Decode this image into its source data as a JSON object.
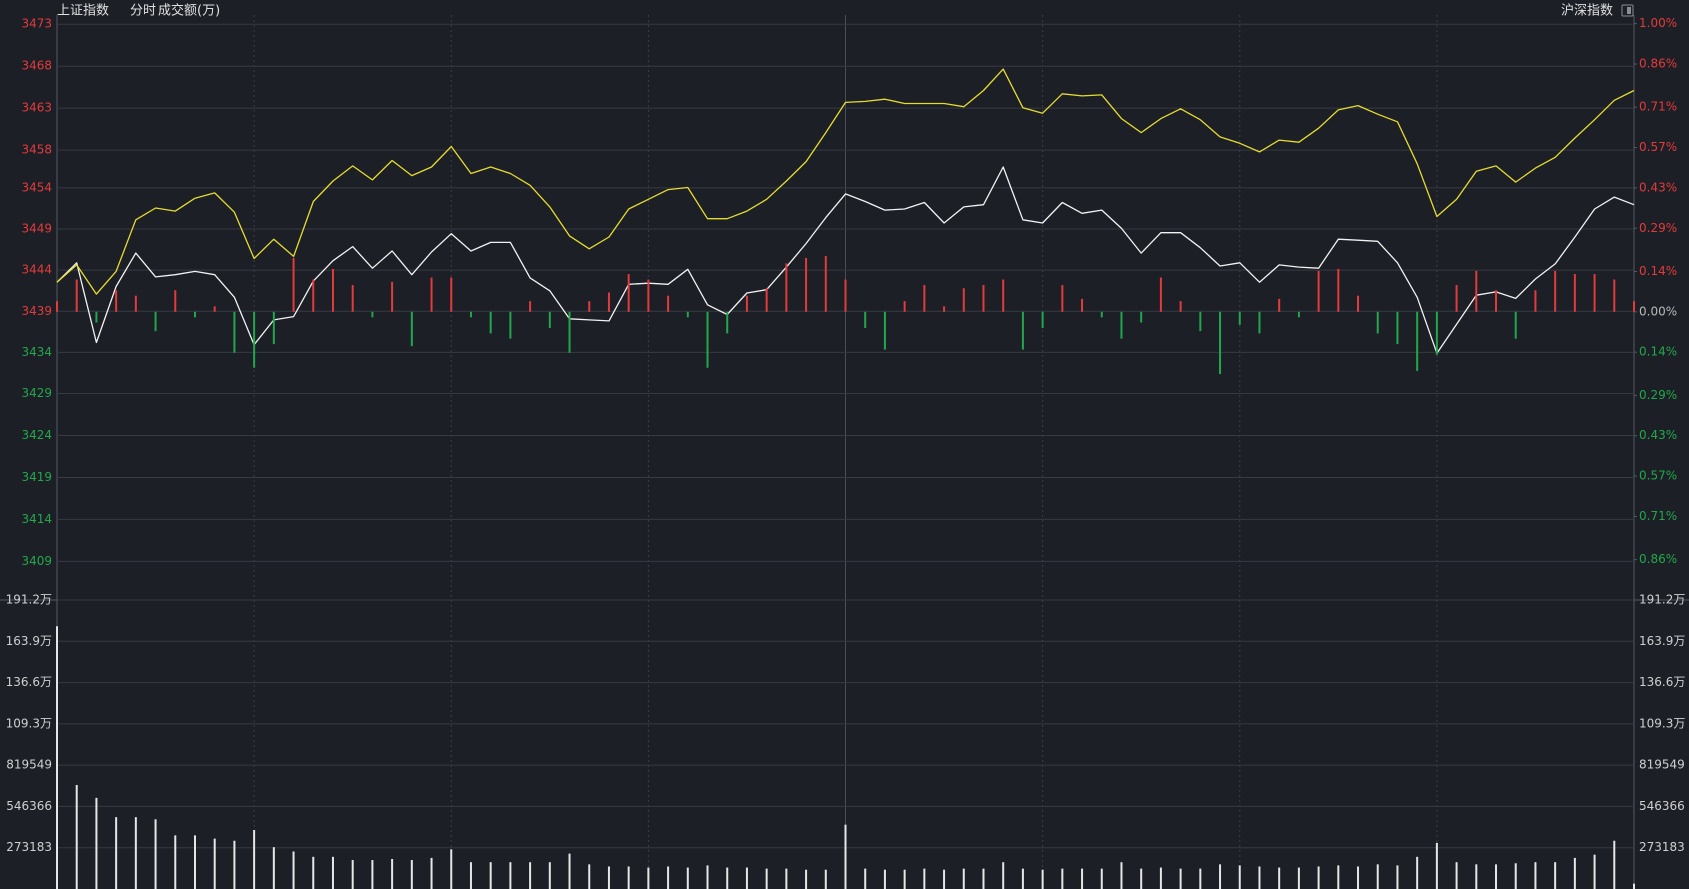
{
  "header": {
    "title": "上证指数",
    "period": "分时",
    "volume_label": "成交额(万)",
    "switch": "沪深指数"
  },
  "chart_data": [
    {
      "type": "line",
      "up_color": "#e23b3b",
      "down_color": "#22a84a",
      "flat_color": "#b8b8b8",
      "grid": true,
      "ylim": [
        3404.8,
        3474.5
      ],
      "yticks": [
        {
          "value": 3473.4,
          "label": "3473"
        },
        {
          "value": 3468.4,
          "label": "3468"
        },
        {
          "value": 3463.4,
          "label": "3463"
        },
        {
          "value": 3458.4,
          "label": "3458"
        },
        {
          "value": 3453.9,
          "label": "3454"
        },
        {
          "value": 3449.0,
          "label": "3449"
        },
        {
          "value": 3444.1,
          "label": "3444"
        },
        {
          "value": 3439.2,
          "label": "3439"
        },
        {
          "value": 3434.3,
          "label": "3434"
        },
        {
          "value": 3429.4,
          "label": "3429"
        },
        {
          "value": 3424.4,
          "label": "3424"
        },
        {
          "value": 3419.4,
          "label": "3419"
        },
        {
          "value": 3414.4,
          "label": "3414"
        },
        {
          "value": 3409.4,
          "label": "3409"
        }
      ],
      "y2lim": [
        -1.0,
        1.03
      ],
      "y2ticks": [
        {
          "value": 1.0,
          "label": "1.00%"
        },
        {
          "value": 0.86,
          "label": "0.86%"
        },
        {
          "value": 0.71,
          "label": "0.71%"
        },
        {
          "value": 0.57,
          "label": "0.57%"
        },
        {
          "value": 0.43,
          "label": "0.43%"
        },
        {
          "value": 0.29,
          "label": "0.29%"
        },
        {
          "value": 0.14,
          "label": "0.14%"
        },
        {
          "value": 0.0,
          "label": "0.00%"
        },
        {
          "value": -0.14,
          "label": "0.14%"
        },
        {
          "value": -0.29,
          "label": "0.29%"
        },
        {
          "value": -0.43,
          "label": "0.43%"
        },
        {
          "value": -0.57,
          "label": "0.57%"
        },
        {
          "value": -0.71,
          "label": "0.71%"
        },
        {
          "value": -0.86,
          "label": "0.86%"
        }
      ],
      "series": [
        {
          "color": "#f2f2f2",
          "values": [
            3442.66,
            3444.97,
            3435.48,
            3442.15,
            3446.13,
            3443.3,
            3443.56,
            3443.95,
            3443.56,
            3440.87,
            3435.22,
            3438.17,
            3438.56,
            3442.79,
            3445.23,
            3446.9,
            3444.33,
            3446.38,
            3443.56,
            3446.26,
            3448.44,
            3446.38,
            3447.41,
            3447.41,
            3443.18,
            3441.64,
            3438.3,
            3438.17,
            3438.05,
            3442.41,
            3442.54,
            3442.41,
            3444.2,
            3439.97,
            3438.82,
            3441.38,
            3441.77,
            3444.46,
            3447.28,
            3450.36,
            3453.18,
            3452.28,
            3451.26,
            3451.39,
            3452.16,
            3449.72,
            3451.64,
            3451.9,
            3456.39,
            3450.1,
            3449.72,
            3452.16,
            3450.87,
            3451.26,
            3449.08,
            3446.13,
            3448.56,
            3448.56,
            3446.77,
            3444.59,
            3444.97,
            3442.66,
            3444.72,
            3444.46,
            3444.33,
            3447.79,
            3447.67,
            3447.54,
            3444.97,
            3440.87,
            3434.2,
            3437.66,
            3441.12,
            3441.51,
            3440.74,
            3443.05,
            3444.84,
            3448.05,
            3451.39,
            3452.8,
            3451.9
          ]
        },
        {
          "color": "#e6dc2e",
          "values": [
            3442.66,
            3444.72,
            3441.25,
            3443.95,
            3450.1,
            3451.51,
            3451.13,
            3452.67,
            3453.31,
            3451.0,
            3445.49,
            3447.79,
            3445.74,
            3452.28,
            3454.72,
            3456.52,
            3454.85,
            3457.16,
            3455.36,
            3456.39,
            3458.83,
            3455.62,
            3456.39,
            3455.62,
            3454.21,
            3451.64,
            3448.18,
            3446.64,
            3448.05,
            3451.39,
            3452.54,
            3453.7,
            3453.95,
            3450.23,
            3450.23,
            3451.13,
            3452.54,
            3454.72,
            3457.03,
            3460.49,
            3464.09,
            3464.21,
            3464.47,
            3463.96,
            3463.96,
            3463.96,
            3463.57,
            3465.5,
            3468.06,
            3463.44,
            3462.8,
            3465.11,
            3464.86,
            3464.98,
            3462.16,
            3460.49,
            3462.16,
            3463.32,
            3462.03,
            3459.98,
            3459.21,
            3458.19,
            3459.6,
            3459.34,
            3461.01,
            3463.19,
            3463.7,
            3462.68,
            3461.78,
            3456.77,
            3450.49,
            3452.54,
            3455.88,
            3456.52,
            3454.59,
            3456.26,
            3457.54,
            3459.85,
            3462.03,
            3464.34,
            3465.5
          ]
        },
        {
          "type": "bar",
          "axis": "y2",
          "values": [
            0.037,
            0.112,
            -0.037,
            0.075,
            0.056,
            -0.067,
            0.075,
            -0.019,
            0.019,
            -0.142,
            -0.194,
            -0.112,
            0.187,
            0.112,
            0.149,
            0.093,
            -0.019,
            0.104,
            -0.119,
            0.119,
            0.119,
            -0.019,
            -0.075,
            -0.093,
            0.037,
            -0.056,
            -0.142,
            0.037,
            0.067,
            0.131,
            0.112,
            0.056,
            -0.019,
            -0.194,
            -0.075,
            0.056,
            0.082,
            0.168,
            0.187,
            0.194,
            0.112,
            -0.056,
            -0.131,
            0.037,
            0.093,
            0.019,
            0.082,
            0.093,
            0.112,
            -0.131,
            -0.056,
            0.093,
            0.045,
            -0.019,
            -0.093,
            -0.037,
            0.119,
            0.037,
            -0.067,
            -0.216,
            -0.045,
            -0.075,
            0.045,
            -0.019,
            0.142,
            0.149,
            0.056,
            -0.075,
            -0.112,
            -0.205,
            -0.149,
            0.093,
            0.142,
            0.075,
            -0.093,
            0.075,
            0.142,
            0.131,
            0.131,
            0.112,
            0.037
          ]
        }
      ]
    },
    {
      "type": "bar",
      "color": "#e6e6e6",
      "grid": true,
      "ylim": [
        0,
        1912281
      ],
      "yticks": [
        273183,
        546366,
        819549,
        {
          "value": 1092732,
          "label": "109.3万"
        },
        {
          "value": 1365915,
          "label": "136.6万"
        },
        {
          "value": 1639098,
          "label": "163.9万"
        },
        {
          "value": 1912281,
          "label": "191.2万"
        }
      ],
      "values": [
        1738520,
        688312,
        603160,
        475432,
        475432,
        461240,
        354800,
        354800,
        333512,
        319320,
        390280,
        276744,
        248360,
        212880,
        212880,
        191592,
        191592,
        198688,
        191592,
        205784,
        262552,
        177400,
        177400,
        177400,
        177400,
        177400,
        234168,
        163208,
        149016,
        149016,
        141920,
        149016,
        141920,
        156112,
        141920,
        141920,
        134824,
        134824,
        127728,
        127728,
        425760,
        134824,
        127728,
        127728,
        134824,
        127728,
        134824,
        134824,
        177400,
        134824,
        127728,
        134824,
        134824,
        134824,
        177400,
        134824,
        141920,
        134824,
        134824,
        163208,
        156112,
        149016,
        141920,
        141920,
        149016,
        156112,
        149016,
        163208,
        156112,
        212880,
        305128,
        177400,
        163208,
        163208,
        170304,
        177400,
        177400,
        205784,
        227072,
        319320,
        35480
      ]
    }
  ]
}
